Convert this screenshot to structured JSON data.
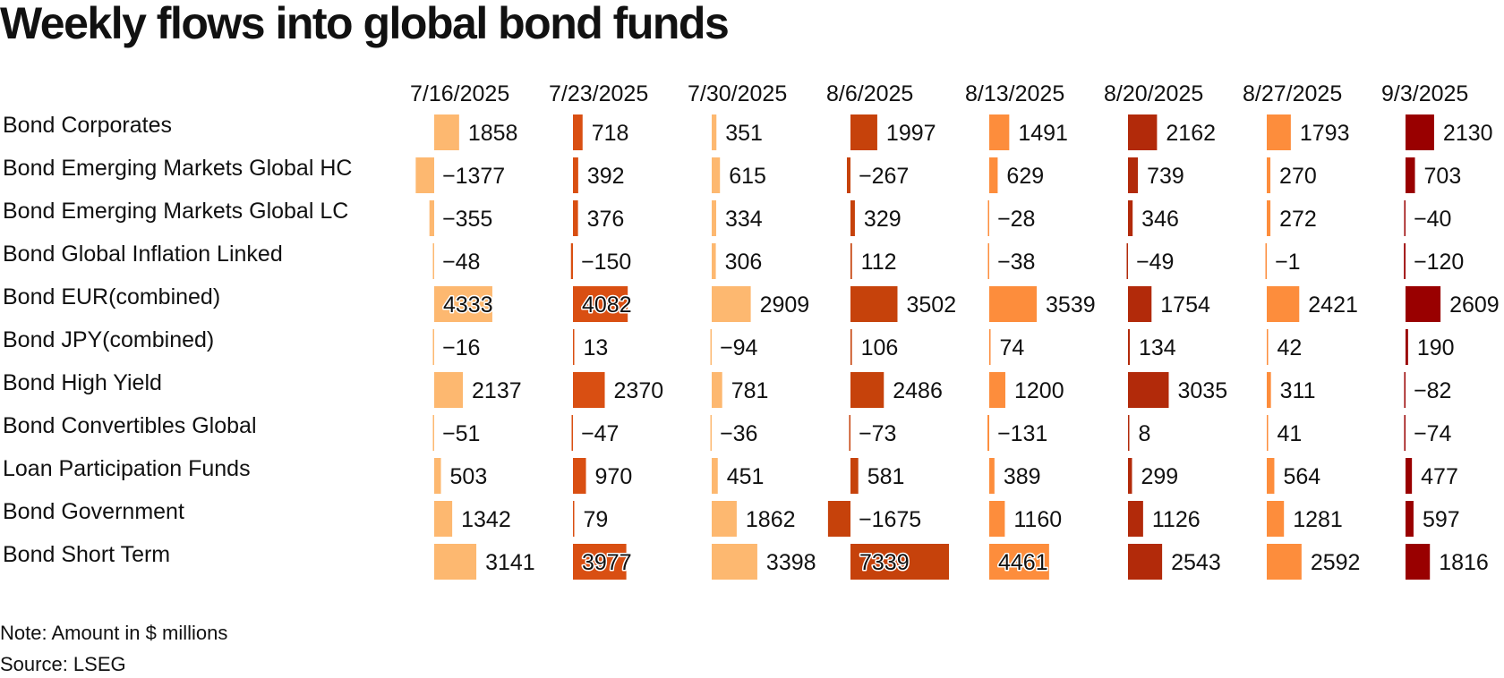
{
  "title": "Weekly flows into global bond funds",
  "note": "Note: Amount in $ millions",
  "source": "Source: LSEG",
  "chart_data": {
    "type": "table",
    "title": "Weekly flows into global bond funds",
    "unit": "$ millions",
    "columns": [
      "7/16/2025",
      "7/23/2025",
      "7/30/2025",
      "8/6/2025",
      "8/13/2025",
      "8/20/2025",
      "8/27/2025",
      "9/3/2025"
    ],
    "column_colors": [
      "#fdb870",
      "#d94f12",
      "#fdb870",
      "#c6420b",
      "#fd8d3c",
      "#b22a0a",
      "#fd8d3c",
      "#990000"
    ],
    "rows": [
      {
        "label": "Bond Corporates",
        "values": [
          1858,
          718,
          351,
          1997,
          1491,
          2162,
          1793,
          2130
        ]
      },
      {
        "label": "Bond Emerging Markets Global HC",
        "values": [
          -1377,
          392,
          615,
          -267,
          629,
          739,
          270,
          703
        ]
      },
      {
        "label": "Bond Emerging Markets Global LC",
        "values": [
          -355,
          376,
          334,
          329,
          -28,
          346,
          272,
          -40
        ]
      },
      {
        "label": "Bond Global Inflation Linked",
        "values": [
          -48,
          -150,
          306,
          112,
          -38,
          -49,
          -1,
          -120
        ]
      },
      {
        "label": "Bond EUR(combined)",
        "values": [
          4333,
          4082,
          2909,
          3502,
          3539,
          1754,
          2421,
          2609
        ]
      },
      {
        "label": "Bond JPY(combined)",
        "values": [
          -16,
          13,
          -94,
          106,
          74,
          134,
          42,
          190
        ]
      },
      {
        "label": "Bond High Yield",
        "values": [
          2137,
          2370,
          781,
          2486,
          1200,
          3035,
          311,
          -82
        ]
      },
      {
        "label": "Bond Convertibles Global",
        "values": [
          -51,
          -47,
          -36,
          -73,
          -131,
          8,
          41,
          -74
        ]
      },
      {
        "label": "Loan Participation Funds",
        "values": [
          503,
          970,
          451,
          581,
          389,
          299,
          564,
          477
        ]
      },
      {
        "label": "Bond Government",
        "values": [
          1342,
          79,
          1862,
          -1675,
          1160,
          1126,
          1281,
          597
        ]
      },
      {
        "label": "Bond Short Term",
        "values": [
          3141,
          3977,
          3398,
          7339,
          4461,
          2543,
          2592,
          1816
        ]
      }
    ]
  }
}
